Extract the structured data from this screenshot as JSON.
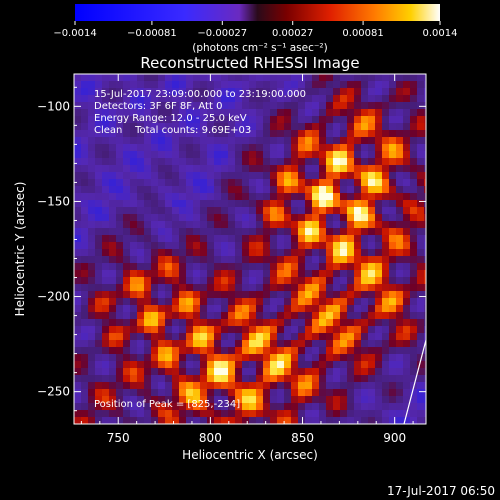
{
  "colorbar": {
    "tick_labels": [
      "−0.0014",
      "−0.00081",
      "−0.00027",
      "0.00027",
      "0.00081",
      "0.0014"
    ],
    "tick_values": [
      -0.0014,
      -0.00081,
      -0.00027,
      0.00027,
      0.00081,
      0.0014
    ],
    "range": [
      -0.0014,
      0.0014
    ],
    "units_label": "(photons cm⁻² s⁻¹ asec⁻²)"
  },
  "chart_data": {
    "type": "heatmap",
    "title": "Reconstructed RHESSI Image",
    "xlabel": "Heliocentric X (arcsec)",
    "ylabel": "Heliocentric Y (arcsec)",
    "xlim": [
      726,
      917
    ],
    "ylim": [
      -267,
      -83
    ],
    "xticks": [
      750,
      800,
      850,
      900
    ],
    "yticks": [
      -100,
      -150,
      -200,
      -250
    ],
    "xtick_labels": [
      "750",
      "800",
      "850",
      "900"
    ],
    "ytick_labels": [
      "−100",
      "−150",
      "−200",
      "−250"
    ],
    "value_range": [
      -0.0014,
      0.0014
    ],
    "annotations": [
      "15-Jul-2017 23:09:00.000 to 23:19:00.000",
      "Detectors: 3F 6F 8F, Att 0",
      "Energy Range: 12.0 - 25.0 keV",
      "Clean    Total counts: 9.69E+03"
    ],
    "peak_label": "Position of Peak = [825,-234]",
    "peak_position": [
      825,
      -234
    ],
    "limb_visible": true
  },
  "footer": {
    "timestamp": "17-Jul-2017 06:50"
  }
}
